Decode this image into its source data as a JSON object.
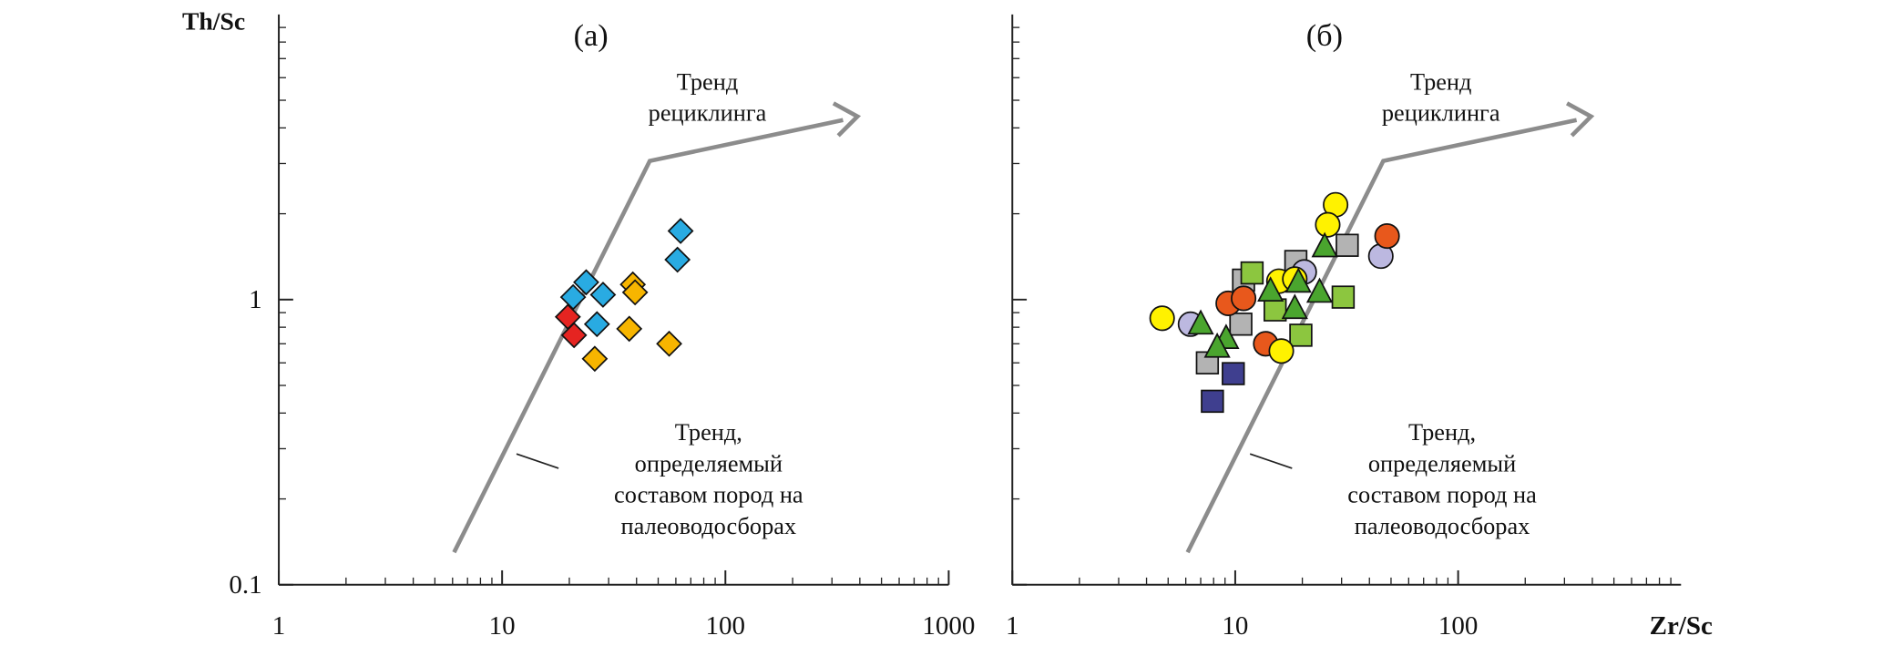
{
  "chart_data": [
    {
      "type": "scatter",
      "title": "(а)",
      "ylabel": "Th/Sc",
      "log_x": true,
      "log_y": true,
      "xlim": [
        1,
        1000
      ],
      "ylim": [
        0.1,
        10
      ],
      "xticks": [
        1,
        10,
        100,
        1000
      ],
      "yticks": [
        0.1,
        1
      ],
      "show_ytick_labels": true,
      "annotation_top": [
        "Тренд",
        "рециклинга"
      ],
      "annotation_bottom": [
        "Тренд,",
        "определяемый",
        "составом пород на",
        "палеоводосборах"
      ],
      "series": [
        {
          "marker": "diamond",
          "color": "#29abe2",
          "x": [
            23.8,
            20.8,
            28.3,
            26.6,
            63,
            61
          ],
          "y": [
            1.15,
            1.02,
            1.04,
            0.82,
            1.74,
            1.38
          ]
        },
        {
          "marker": "diamond",
          "color": "#e52421",
          "x": [
            19.7,
            21.0
          ],
          "y": [
            0.87,
            0.75
          ]
        },
        {
          "marker": "diamond",
          "color": "#f7b500",
          "x": [
            38.5,
            39.4,
            37.1,
            26,
            56
          ],
          "y": [
            1.13,
            1.06,
            0.79,
            0.62,
            0.7
          ]
        }
      ]
    },
    {
      "type": "scatter",
      "title": "(б)",
      "xlabel": "Zr/Sc",
      "log_x": true,
      "log_y": true,
      "xlim": [
        1,
        1000
      ],
      "ylim": [
        0.1,
        10
      ],
      "xticks": [
        1,
        10,
        100
      ],
      "yticks": [
        0.1,
        1
      ],
      "show_ytick_labels": false,
      "annotation_top": [
        "Тренд",
        "рециклинга"
      ],
      "annotation_bottom": [
        "Тренд,",
        "определяемый",
        "составом пород на",
        "палеоводосборах"
      ],
      "series": [
        {
          "marker": "square",
          "color": "#b3b3b3",
          "x": [
            31.8,
            10.9,
            7.5,
            10.6,
            18.7
          ],
          "y": [
            1.55,
            1.17,
            0.6,
            0.82,
            1.36
          ]
        },
        {
          "marker": "square",
          "color": "#8cc63f",
          "x": [
            11.9,
            30.5,
            19.7,
            15.1
          ],
          "y": [
            1.24,
            1.02,
            0.75,
            0.92
          ]
        },
        {
          "marker": "square",
          "color": "#3f3f8f",
          "x": [
            7.9,
            9.8
          ],
          "y": [
            0.44,
            0.55
          ]
        },
        {
          "marker": "circle",
          "color": "#bcb8e0",
          "x": [
            6.3,
            45.0,
            20.4
          ],
          "y": [
            0.82,
            1.42,
            1.25
          ]
        },
        {
          "marker": "circle",
          "color": "#e8581c",
          "x": [
            48,
            9.3,
            10.9,
            13.7
          ],
          "y": [
            1.67,
            0.97,
            1.01,
            0.7
          ]
        },
        {
          "marker": "circle",
          "color": "#fff200",
          "x": [
            4.7,
            28.2,
            26,
            16.1,
            15.7,
            18.5
          ],
          "y": [
            0.86,
            2.15,
            1.83,
            0.66,
            1.16,
            1.18
          ]
        },
        {
          "marker": "triangle",
          "color": "#4aa52e",
          "x": [
            25.2,
            14.4,
            19.2,
            7.0,
            9.1,
            18.5,
            23.9,
            8.3
          ],
          "y": [
            1.53,
            1.07,
            1.15,
            0.82,
            0.73,
            0.93,
            1.06,
            0.68
          ]
        }
      ]
    }
  ]
}
